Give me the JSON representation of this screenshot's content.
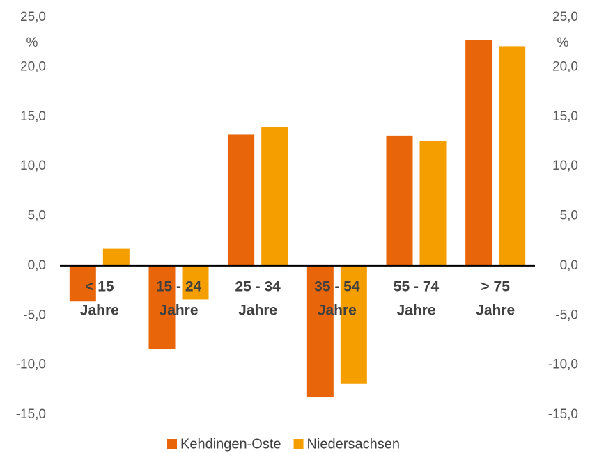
{
  "chart_data": {
    "type": "bar",
    "categories": [
      [
        "< 15",
        "Jahre"
      ],
      [
        "15 - 24",
        "Jahre"
      ],
      [
        "25 - 34",
        "Jahre"
      ],
      [
        "35 - 54",
        "Jahre"
      ],
      [
        "55 - 74",
        "Jahre"
      ],
      [
        "> 75",
        "Jahre"
      ]
    ],
    "series": [
      {
        "name": "Kehdingen-Oste",
        "color": "#e8650a",
        "values": [
          -3.6,
          -8.4,
          13.2,
          -13.2,
          13.1,
          22.7
        ]
      },
      {
        "name": "Niedersachsen",
        "color": "#f59e00",
        "values": [
          1.7,
          -3.4,
          14.0,
          -11.9,
          12.6,
          22.1
        ]
      }
    ],
    "y_unit": "%",
    "ylim": [
      -15,
      25
    ],
    "yticks": [
      {
        "value": -15,
        "label": "-15,0"
      },
      {
        "value": -10,
        "label": "-10,0"
      },
      {
        "value": -5,
        "label": "-5,0"
      },
      {
        "value": 0,
        "label": "0,0"
      },
      {
        "value": 5,
        "label": "5,0"
      },
      {
        "value": 10,
        "label": "10,0"
      },
      {
        "value": 15,
        "label": "15,0"
      },
      {
        "value": 20,
        "label": "20,0"
      },
      {
        "value": 25,
        "label": "25,0"
      }
    ],
    "y2lim": [
      -15,
      25
    ],
    "y2ticks": [
      {
        "value": -15,
        "label": "-15,0"
      },
      {
        "value": -10,
        "label": "-10,0"
      },
      {
        "value": -5,
        "label": "-5,0"
      },
      {
        "value": 0,
        "label": "0,0"
      },
      {
        "value": 5,
        "label": "5,0"
      },
      {
        "value": 10,
        "label": "10,0"
      },
      {
        "value": 15,
        "label": "15,0"
      },
      {
        "value": 20,
        "label": "20,0"
      },
      {
        "value": 25,
        "label": "25,0"
      }
    ],
    "grid": false,
    "legend": "bottom"
  }
}
